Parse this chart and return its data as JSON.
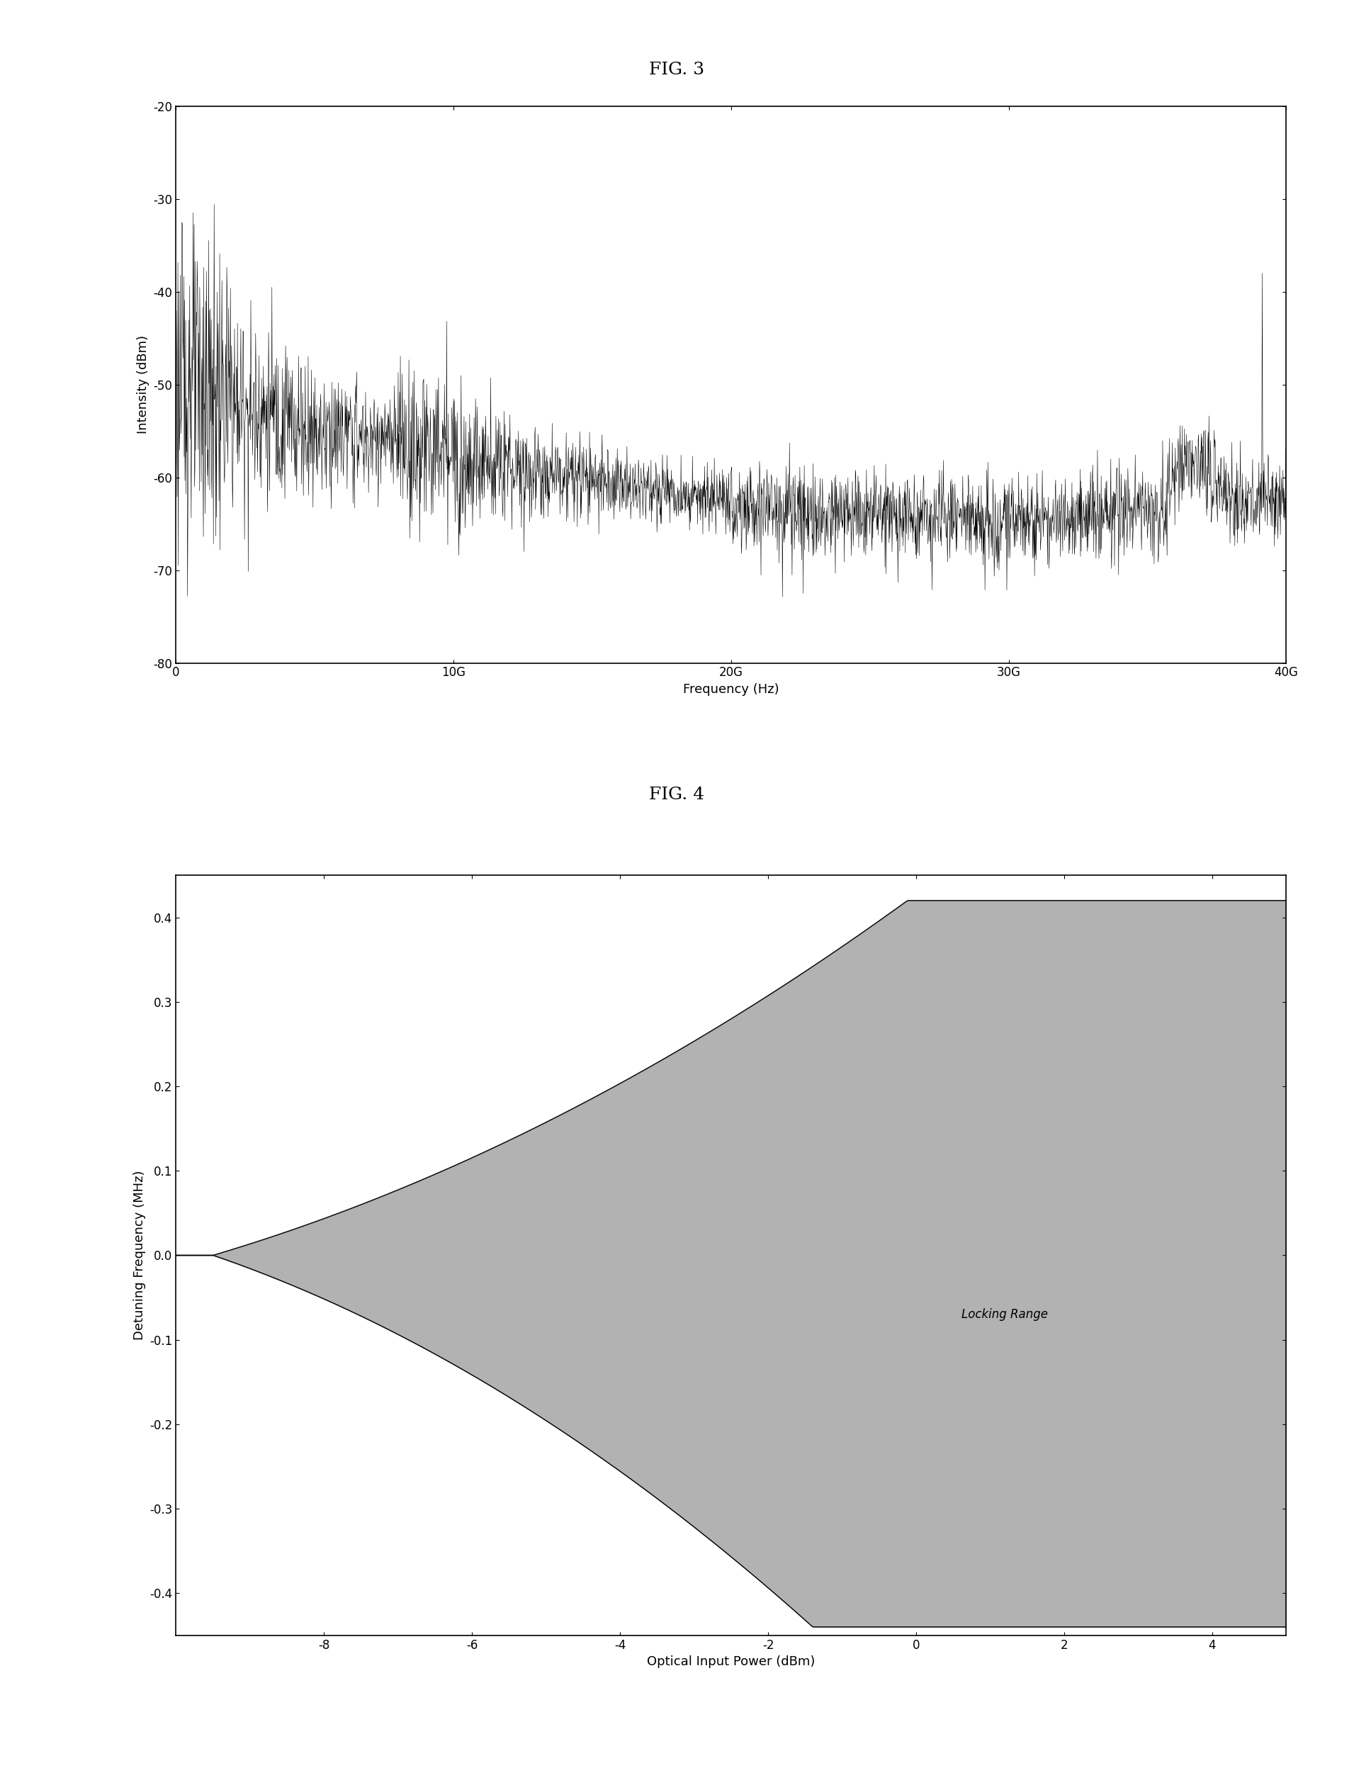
{
  "fig3_title": "FIG. 3",
  "fig4_title": "FIG. 4",
  "fig3_xlabel": "Frequency (Hz)",
  "fig3_ylabel": "Intensity (dBm)",
  "fig3_xlim": [
    0,
    40000000000.0
  ],
  "fig3_ylim": [
    -80,
    -20
  ],
  "fig3_xticks": [
    0,
    10000000000.0,
    20000000000.0,
    30000000000.0,
    40000000000.0
  ],
  "fig3_xticklabels": [
    "0",
    "10G",
    "20G",
    "30G",
    "40G"
  ],
  "fig3_yticks": [
    -80,
    -70,
    -60,
    -50,
    -40,
    -30,
    -20
  ],
  "fig4_xlabel": "Optical Input Power (dBm)",
  "fig4_ylabel": "Detuning Frequency (MHz)",
  "fig4_xlim": [
    -10,
    5
  ],
  "fig4_ylim": [
    -0.45,
    0.45
  ],
  "fig4_xticks": [
    -8,
    -6,
    -4,
    -2,
    0,
    2,
    4
  ],
  "fig4_yticks": [
    -0.4,
    -0.3,
    -0.2,
    -0.1,
    0.0,
    0.1,
    0.2,
    0.3,
    0.4
  ],
  "locking_range_label": "Locking Range",
  "background_color": "#ffffff",
  "line_color": "#000000",
  "fill_color": "#999999",
  "title_fontsize": 18,
  "label_fontsize": 13,
  "tick_fontsize": 12
}
